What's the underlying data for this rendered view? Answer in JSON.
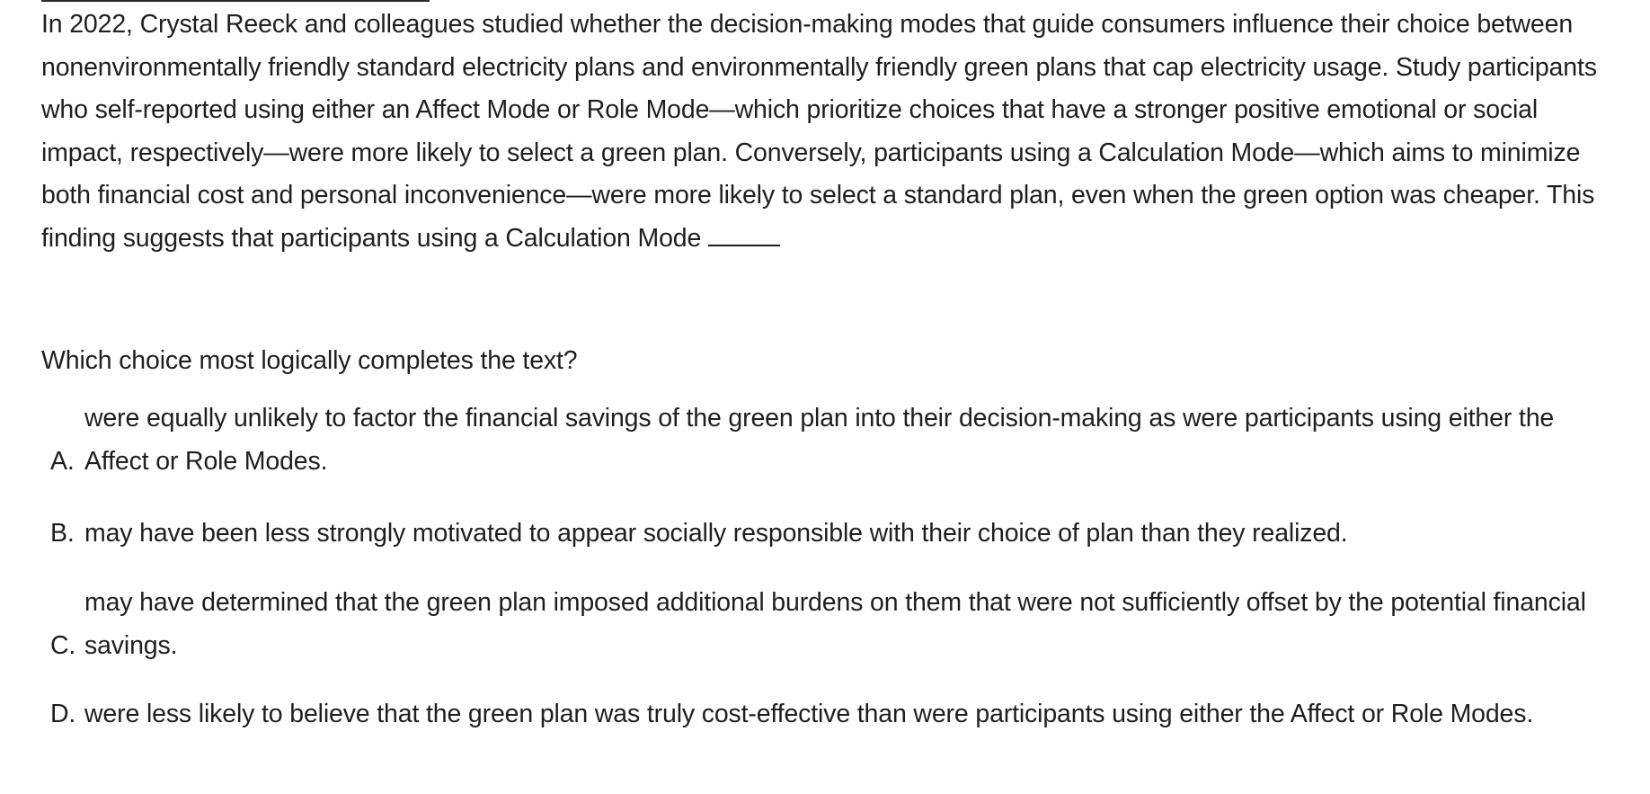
{
  "passage": {
    "text": "In 2022, Crystal Reeck and colleagues studied whether the decision-making modes that guide consumers influence their choice between nonenvironmentally friendly standard electricity plans and environmentally friendly green plans that cap electricity usage. Study participants who self-reported using either an Affect Mode or Role Mode—which prioritize choices that have a stronger positive emotional or social impact, respectively—were more likely to select a green plan. Conversely, participants using a Calculation Mode—which aims to minimize both financial cost and personal inconvenience—were more likely to select a standard plan, even when the green option was cheaper. This finding suggests that participants using a Calculation Mode"
  },
  "question": {
    "prompt": "Which choice most logically completes the text?"
  },
  "choices": [
    {
      "letter": "A.",
      "text": "were equally unlikely to factor the financial savings of the green plan into their decision-making as were participants using either the Affect or Role Modes."
    },
    {
      "letter": "B.",
      "text": "may have been less strongly motivated to appear socially responsible with their choice of plan than they realized."
    },
    {
      "letter": "C.",
      "text": "may have determined that the green plan imposed additional burdens on them that were not sufficiently offset by the potential financial savings."
    },
    {
      "letter": "D.",
      "text": "were less likely to believe that the green plan was truly cost-effective than were participants using either the Affect or Role Modes."
    }
  ]
}
